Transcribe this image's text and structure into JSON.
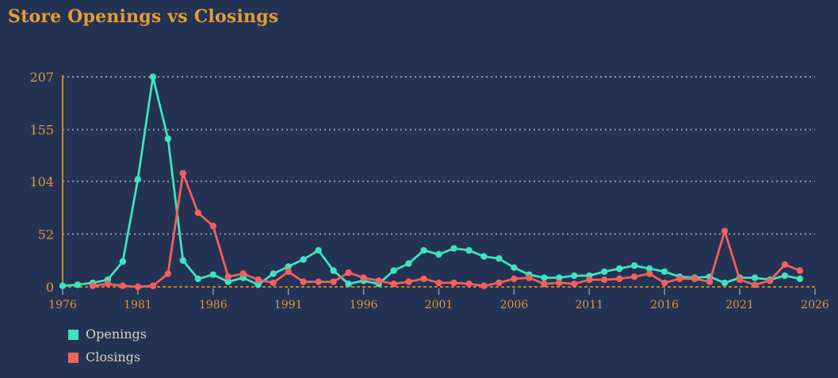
{
  "title": "Store Openings vs Closings",
  "colors": {
    "background": "#243254",
    "title": "#E29E33",
    "axis_labels": "#D99A35",
    "axis_line": "#C9892A",
    "zero_line": "#BC8122",
    "gridline": "rgba(255,255,255,0.5)",
    "tick": "#8F95A8",
    "legend_text": "#D9D4BA"
  },
  "chart_data": {
    "type": "line",
    "title": "Store Openings vs Closings",
    "x": [
      1976,
      1977,
      1978,
      1979,
      1980,
      1981,
      1982,
      1983,
      1984,
      1985,
      1986,
      1987,
      1988,
      1989,
      1990,
      1991,
      1992,
      1993,
      1994,
      1995,
      1996,
      1997,
      1998,
      1999,
      2000,
      2001,
      2002,
      2003,
      2004,
      2005,
      2006,
      2007,
      2008,
      2009,
      2010,
      2011,
      2012,
      2013,
      2014,
      2015,
      2016,
      2017,
      2018,
      2019,
      2020,
      2021,
      2022,
      2023,
      2024,
      2025
    ],
    "series": [
      {
        "name": "Openings",
        "color": "#3EE3BF",
        "values": [
          1,
          2,
          4,
          7,
          25,
          106,
          207,
          146,
          26,
          8,
          12,
          5,
          9,
          2,
          13,
          20,
          27,
          36,
          16,
          3,
          6,
          3,
          16,
          23,
          36,
          32,
          38,
          36,
          30,
          28,
          19,
          12,
          9,
          9,
          11,
          11,
          15,
          18,
          21,
          18,
          15,
          10,
          9,
          10,
          4,
          9,
          9,
          7,
          11,
          8
        ]
      },
      {
        "name": "Closings",
        "color": "#F2605C",
        "values": [
          null,
          null,
          1,
          3,
          1,
          0,
          1,
          13,
          112,
          73,
          60,
          10,
          13,
          7,
          4,
          15,
          5,
          5,
          5,
          14,
          9,
          6,
          3,
          5,
          8,
          4,
          4,
          3,
          1,
          4,
          8,
          9,
          3,
          4,
          3,
          7,
          7,
          8,
          10,
          13,
          4,
          8,
          8,
          5,
          55,
          7,
          2,
          6,
          22,
          16
        ]
      }
    ],
    "xlabel": "",
    "ylabel": "",
    "xlim": [
      1976,
      2026
    ],
    "ylim": [
      0,
      207
    ],
    "x_ticks": [
      1976,
      1981,
      1986,
      1991,
      1996,
      2001,
      2006,
      2011,
      2016,
      2021,
      2026
    ],
    "y_ticks": [
      0,
      52,
      104,
      155,
      207
    ],
    "grid": "horizontal-dotted",
    "legend_position": "bottom-left"
  }
}
